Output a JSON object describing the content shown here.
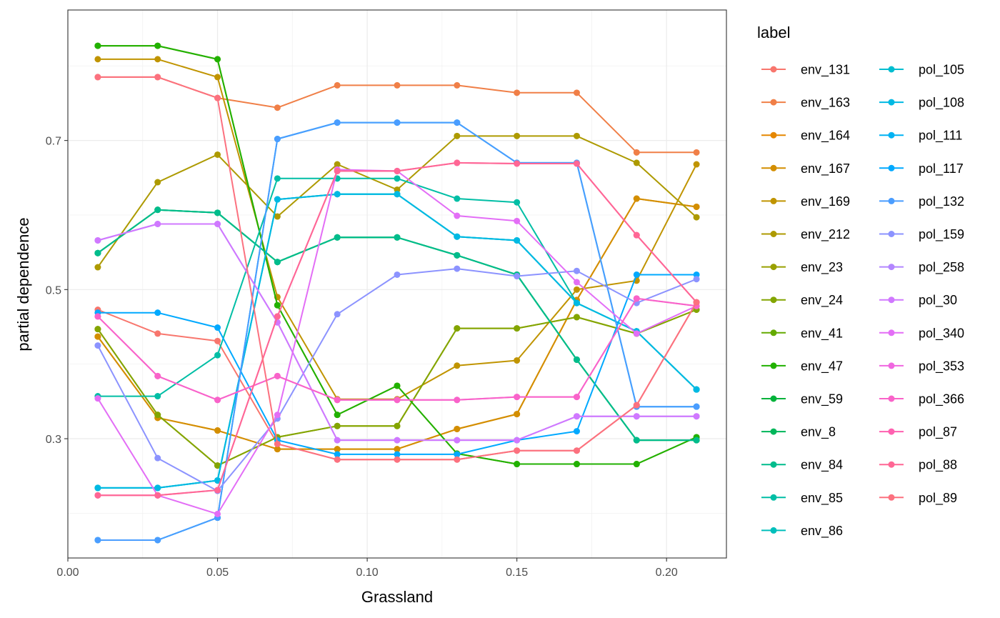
{
  "chart_data": {
    "type": "line",
    "title": "",
    "xlabel": "Grassland",
    "ylabel": "partial dependence",
    "xlim": [
      0.0,
      0.22
    ],
    "ylim": [
      0.14,
      0.875
    ],
    "x_ticks": [
      0.0,
      0.05,
      0.1,
      0.15,
      0.2
    ],
    "x_tick_labels": [
      "0.00",
      "0.05",
      "0.10",
      "0.15",
      "0.20"
    ],
    "y_ticks": [
      0.3,
      0.5,
      0.7
    ],
    "y_tick_labels": [
      "0.3",
      "0.5",
      "0.7"
    ],
    "grid": true,
    "legend_title": "label",
    "legend_position": "right",
    "x": [
      0.01,
      0.03,
      0.05,
      0.07,
      0.09,
      0.11,
      0.13,
      0.15,
      0.17,
      0.19,
      0.21
    ],
    "series": [
      {
        "name": "env_131",
        "color": "#F8766D",
        "values": [
          0.473,
          0.441,
          0.431,
          0.293,
          0.272,
          0.272,
          0.272,
          0.284,
          0.284,
          0.345,
          0.483
        ]
      },
      {
        "name": "env_163",
        "color": "#F07F47",
        "values": [
          0.785,
          0.785,
          0.757,
          0.744,
          0.774,
          0.774,
          0.774,
          0.764,
          0.764,
          0.684,
          0.684
        ]
      },
      {
        "name": "env_164",
        "color": "#E58700",
        "values": [
          0.437,
          0.328,
          0.311,
          0.286,
          0.286,
          0.286,
          0.313,
          0.333,
          0.486,
          0.622,
          0.611
        ]
      },
      {
        "name": "env_167",
        "color": "#D38E00",
        "values": [
          0.437,
          0.328,
          0.311,
          0.286,
          0.286,
          0.286,
          0.313,
          0.333,
          0.486,
          0.622,
          0.611
        ]
      },
      {
        "name": "env_169",
        "color": "#C09400",
        "values": [
          0.809,
          0.809,
          0.785,
          0.49,
          0.353,
          0.353,
          0.398,
          0.405,
          0.5,
          0.512,
          0.668
        ]
      },
      {
        "name": "env_212",
        "color": "#AD9A00",
        "values": [
          0.53,
          0.644,
          0.681,
          0.598,
          0.668,
          0.634,
          0.706,
          0.706,
          0.706,
          0.67,
          0.597
        ]
      },
      {
        "name": "env_23",
        "color": "#99A000",
        "values": [
          0.447,
          0.332,
          0.264,
          0.302,
          0.317,
          0.317,
          0.448,
          0.448,
          0.463,
          0.441,
          0.473
        ]
      },
      {
        "name": "env_24",
        "color": "#83A500",
        "values": [
          0.447,
          0.332,
          0.264,
          0.302,
          0.317,
          0.317,
          0.448,
          0.448,
          0.463,
          0.441,
          0.473
        ]
      },
      {
        "name": "env_41",
        "color": "#64AA00",
        "values": [
          0.827,
          0.827,
          0.809,
          0.479,
          0.332,
          0.371,
          0.28,
          0.266,
          0.266,
          0.266,
          0.302
        ]
      },
      {
        "name": "env_47",
        "color": "#21B100",
        "values": [
          0.827,
          0.827,
          0.809,
          0.479,
          0.332,
          0.371,
          0.28,
          0.266,
          0.266,
          0.266,
          0.302
        ]
      },
      {
        "name": "env_59",
        "color": "#00B23A",
        "values": [
          0.549,
          0.607,
          0.603,
          0.537,
          0.57,
          0.57,
          0.546,
          0.52,
          0.406,
          0.298,
          0.298
        ]
      },
      {
        "name": "env_8",
        "color": "#00B65A",
        "values": [
          0.549,
          0.607,
          0.603,
          0.537,
          0.57,
          0.57,
          0.546,
          0.52,
          0.406,
          0.298,
          0.298
        ]
      },
      {
        "name": "env_84",
        "color": "#00BC8C",
        "values": [
          0.549,
          0.607,
          0.603,
          0.537,
          0.57,
          0.57,
          0.546,
          0.52,
          0.406,
          0.298,
          0.298
        ]
      },
      {
        "name": "env_85",
        "color": "#00BEA5",
        "values": [
          0.357,
          0.357,
          0.412,
          0.649,
          0.649,
          0.649,
          0.622,
          0.617,
          0.482,
          0.444,
          0.366
        ]
      },
      {
        "name": "env_86",
        "color": "#00BFBB",
        "values": [
          0.234,
          0.234,
          0.244,
          0.621,
          0.628,
          0.628,
          0.571,
          0.566,
          0.482,
          0.444,
          0.366
        ]
      },
      {
        "name": "pol_105",
        "color": "#00BDD0",
        "values": [
          0.234,
          0.234,
          0.244,
          0.621,
          0.628,
          0.628,
          0.571,
          0.566,
          0.482,
          0.444,
          0.366
        ]
      },
      {
        "name": "pol_108",
        "color": "#00B9E3",
        "values": [
          0.234,
          0.234,
          0.244,
          0.621,
          0.628,
          0.628,
          0.571,
          0.566,
          0.482,
          0.444,
          0.366
        ]
      },
      {
        "name": "pol_111",
        "color": "#00B2F3",
        "values": [
          0.164,
          0.164,
          0.194,
          0.702,
          0.724,
          0.724,
          0.724,
          0.67,
          0.67,
          0.343,
          0.343
        ]
      },
      {
        "name": "pol_117",
        "color": "#00A9FF",
        "values": [
          0.469,
          0.469,
          0.449,
          0.298,
          0.279,
          0.279,
          0.279,
          0.298,
          0.31,
          0.52,
          0.52
        ]
      },
      {
        "name": "pol_132",
        "color": "#4A9DFF",
        "values": [
          0.164,
          0.164,
          0.194,
          0.702,
          0.724,
          0.724,
          0.724,
          0.67,
          0.67,
          0.343,
          0.343
        ]
      },
      {
        "name": "pol_159",
        "color": "#8C93FF",
        "values": [
          0.425,
          0.274,
          0.23,
          0.327,
          0.467,
          0.52,
          0.528,
          0.518,
          0.525,
          0.482,
          0.514
        ]
      },
      {
        "name": "pol_258",
        "color": "#B386FF",
        "values": [
          0.566,
          0.588,
          0.588,
          0.456,
          0.298,
          0.298,
          0.298,
          0.298,
          0.33,
          0.33,
          0.33
        ]
      },
      {
        "name": "pol_30",
        "color": "#D078FF",
        "values": [
          0.566,
          0.588,
          0.588,
          0.456,
          0.298,
          0.298,
          0.298,
          0.298,
          0.33,
          0.33,
          0.33
        ]
      },
      {
        "name": "pol_340",
        "color": "#E36EF6",
        "values": [
          0.354,
          0.224,
          0.199,
          0.332,
          0.661,
          0.659,
          0.599,
          0.592,
          0.51,
          0.441,
          0.478
        ]
      },
      {
        "name": "pol_353",
        "color": "#F067E0",
        "values": [
          0.464,
          0.384,
          0.352,
          0.384,
          0.352,
          0.352,
          0.352,
          0.356,
          0.356,
          0.488,
          0.478
        ]
      },
      {
        "name": "pol_366",
        "color": "#F963C9",
        "values": [
          0.464,
          0.384,
          0.352,
          0.384,
          0.352,
          0.352,
          0.352,
          0.356,
          0.356,
          0.488,
          0.478
        ]
      },
      {
        "name": "pol_87",
        "color": "#FE61B0",
        "values": [
          0.224,
          0.224,
          0.231,
          0.464,
          0.659,
          0.659,
          0.67,
          0.669,
          0.669,
          0.573,
          0.483
        ]
      },
      {
        "name": "pol_88",
        "color": "#FF6795",
        "values": [
          0.224,
          0.224,
          0.231,
          0.464,
          0.659,
          0.659,
          0.67,
          0.669,
          0.669,
          0.573,
          0.483
        ]
      },
      {
        "name": "pol_89",
        "color": "#FC717F",
        "values": [
          0.785,
          0.785,
          0.757,
          0.293,
          0.272,
          0.272,
          0.272,
          0.284,
          0.284,
          0.345,
          0.483
        ]
      }
    ]
  }
}
